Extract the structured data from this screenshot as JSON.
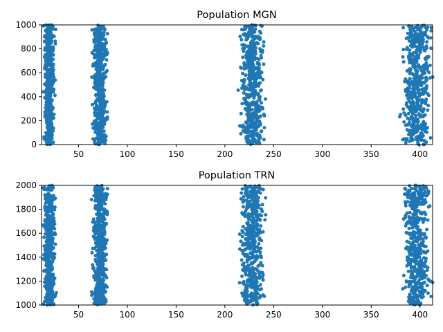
{
  "chart_data": [
    {
      "type": "scatter",
      "title": "Population MGN",
      "xlabel": "",
      "ylabel": "",
      "xlim": [
        12,
        413
      ],
      "ylim": [
        0,
        1000
      ],
      "xticks": [
        50,
        100,
        150,
        200,
        250,
        300,
        350,
        400
      ],
      "yticks": [
        0,
        200,
        400,
        600,
        800,
        1000
      ],
      "grid": false,
      "color": "#1f77b4",
      "point_groups": [
        {
          "x_range": [
            13,
            28
          ],
          "x_center": 20,
          "y_range": [
            0,
            1000
          ],
          "count": 500
        },
        {
          "x_range": [
            60,
            80
          ],
          "x_center": 72,
          "y_range": [
            0,
            1000
          ],
          "count": 500
        },
        {
          "x_range": [
            210,
            242
          ],
          "x_center": 228,
          "y_range": [
            0,
            1000
          ],
          "count": 500
        },
        {
          "x_range": [
            376,
            413
          ],
          "x_center": 397,
          "y_range": [
            0,
            1000
          ],
          "count": 500
        }
      ]
    },
    {
      "type": "scatter",
      "title": "Population TRN",
      "xlabel": "",
      "ylabel": "",
      "xlim": [
        12,
        413
      ],
      "ylim": [
        1000,
        2000
      ],
      "xticks": [
        50,
        100,
        150,
        200,
        250,
        300,
        350,
        400
      ],
      "yticks": [
        1000,
        1200,
        1400,
        1600,
        1800,
        2000
      ],
      "grid": false,
      "color": "#1f77b4",
      "point_groups": [
        {
          "x_range": [
            13,
            28
          ],
          "x_center": 20,
          "y_range": [
            1000,
            2000
          ],
          "count": 500
        },
        {
          "x_range": [
            60,
            80
          ],
          "x_center": 72,
          "y_range": [
            1000,
            2000
          ],
          "count": 500
        },
        {
          "x_range": [
            210,
            242
          ],
          "x_center": 228,
          "y_range": [
            1000,
            2000
          ],
          "count": 500
        },
        {
          "x_range": [
            376,
            413
          ],
          "x_center": 397,
          "y_range": [
            1000,
            2000
          ],
          "count": 500
        }
      ]
    }
  ]
}
